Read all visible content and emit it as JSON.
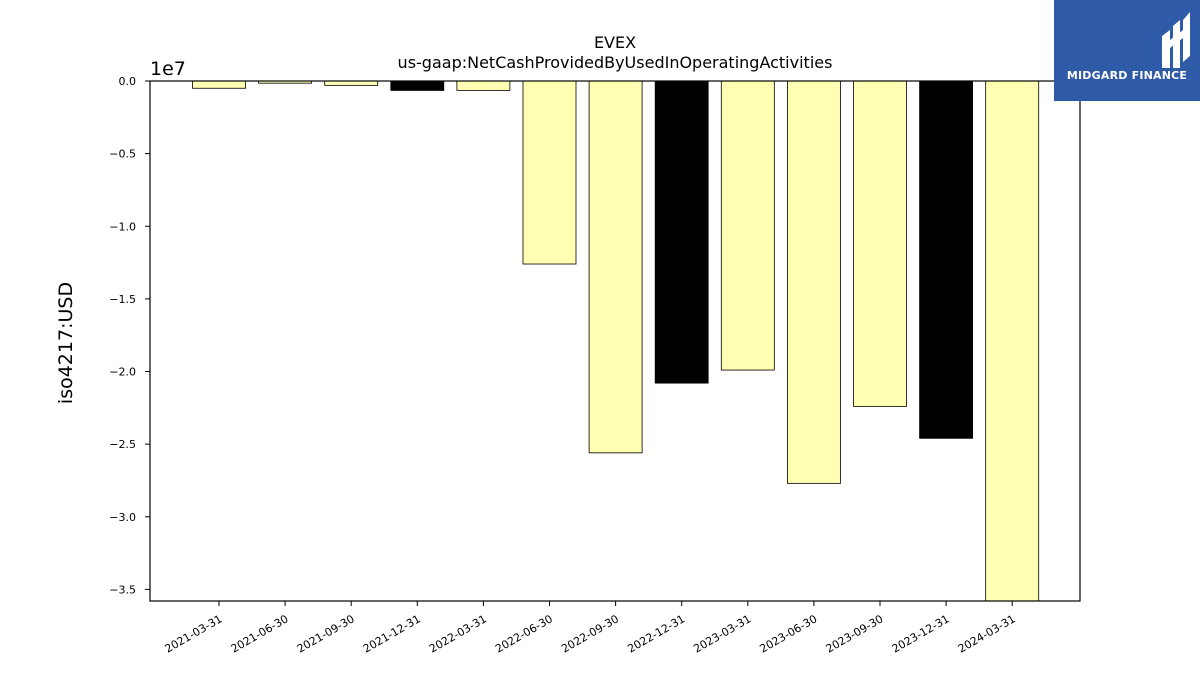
{
  "chart_data": {
    "type": "bar",
    "title": "EVEX",
    "subtitle": "us-gaap:NetCashProvidedByUsedInOperatingActivities",
    "xlabel": "",
    "ylabel": "iso4217:USD",
    "y_offset_label": "1e7",
    "ylim": [
      -3.58,
      0.0
    ],
    "y_ticks": [
      0.0,
      -0.5,
      -1.0,
      -1.5,
      -2.0,
      -2.5,
      -3.0,
      -3.5
    ],
    "y_tick_labels": [
      "0.0",
      "−0.5",
      "−1.0",
      "−1.5",
      "−2.0",
      "−2.5",
      "−3.0",
      "−3.5"
    ],
    "categories": [
      "2021-03-31",
      "2021-06-30",
      "2021-09-30",
      "2021-12-31",
      "2022-03-31",
      "2022-06-30",
      "2022-09-30",
      "2022-12-31",
      "2023-03-31",
      "2023-06-30",
      "2023-09-30",
      "2023-12-31",
      "2024-03-31"
    ],
    "values": [
      -0.05,
      -0.015,
      -0.03,
      -0.065,
      -0.065,
      -1.26,
      -2.56,
      -2.08,
      -1.99,
      -2.77,
      -2.24,
      -2.46,
      -3.58
    ],
    "bar_colors": [
      "#ffffb3",
      "#ffffb3",
      "#ffffb3",
      "#000000",
      "#ffffb3",
      "#ffffb3",
      "#ffffb3",
      "#000000",
      "#ffffb3",
      "#ffffb3",
      "#ffffb3",
      "#000000",
      "#ffffb3"
    ],
    "grid": false,
    "legend": "none"
  },
  "brand": {
    "name": "MIDGARD FINANCE",
    "background": "#2f5aa8",
    "logo_icon": "midgard-logo-icon"
  }
}
